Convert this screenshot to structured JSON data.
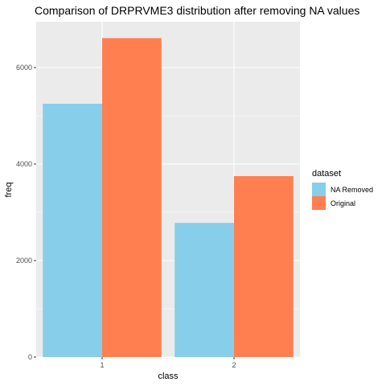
{
  "chart_data": {
    "type": "bar",
    "title": "Comparison of DRPRVME3 distribution after removing NA values",
    "xlabel": "class",
    "ylabel": "freq",
    "categories": [
      "1",
      "2"
    ],
    "series": [
      {
        "name": "NA Removed",
        "color": "#87ceeb",
        "values": [
          5250,
          2780
        ]
      },
      {
        "name": "Original",
        "color": "#ff7f50",
        "values": [
          6610,
          3750
        ]
      }
    ],
    "ylim": [
      0,
      6950
    ],
    "yticks": [
      0,
      2000,
      4000,
      6000
    ],
    "ytick_labels": [
      "0",
      "2000",
      "4000",
      "6000"
    ],
    "grid": true,
    "legend": {
      "title": "dataset",
      "position": "right"
    },
    "panel_background": "#ebebeb",
    "grid_color": "#ffffff"
  }
}
